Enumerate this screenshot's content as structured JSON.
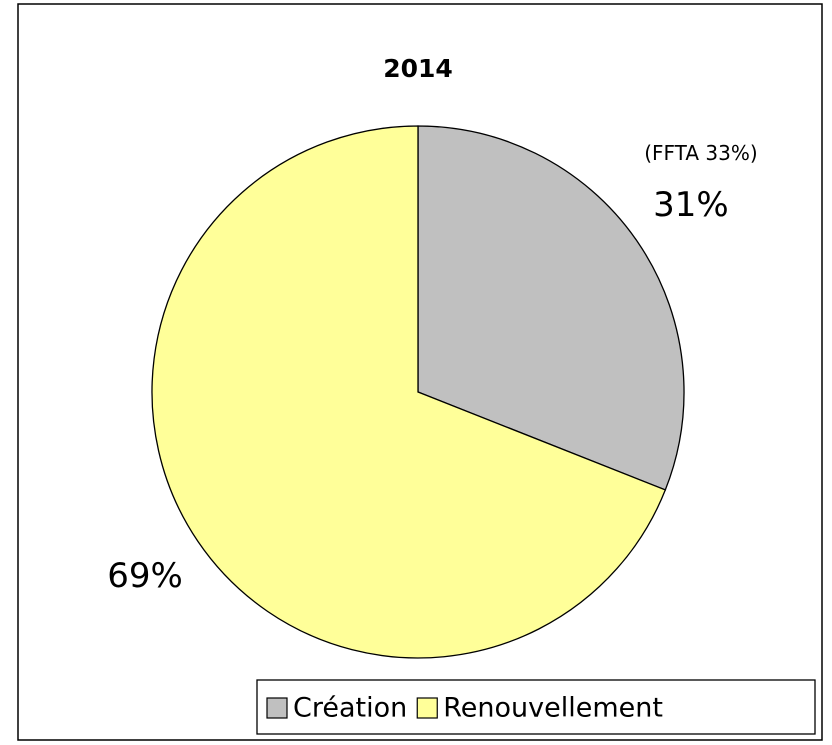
{
  "chart_data": {
    "type": "pie",
    "title": "2014",
    "categories": [
      "Création",
      "Renouvellement"
    ],
    "values": [
      31,
      69
    ],
    "value_labels": [
      "31%",
      "69%"
    ],
    "colors": [
      "#c0c0c0",
      "#ffff99"
    ],
    "annotations": [
      "(FFTA 33%)"
    ],
    "legend": "lower right"
  }
}
